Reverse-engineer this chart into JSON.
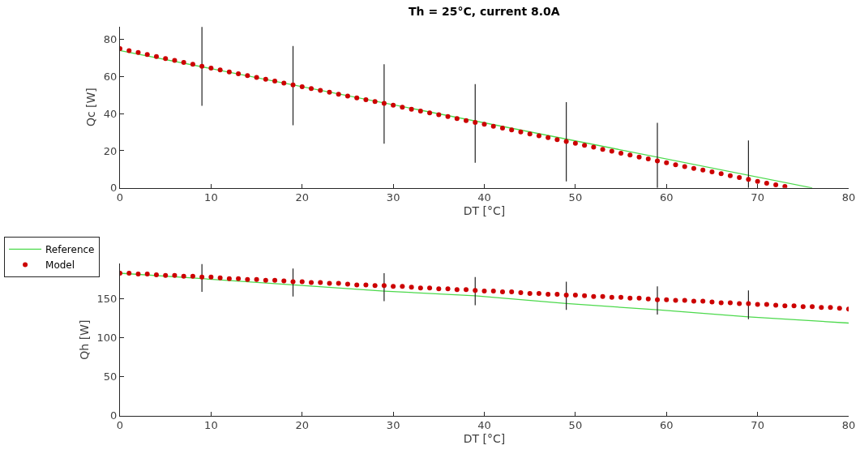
{
  "chart_data": [
    {
      "type": "line",
      "title": "Th = 25°C, current 8.0A",
      "xlabel": "DT [°C]",
      "ylabel": "Qc [W]",
      "xlim": [
        0,
        80
      ],
      "xticks": [
        0,
        10,
        20,
        30,
        40,
        50,
        60,
        70,
        80
      ],
      "ylim": [
        0,
        87
      ],
      "yticks": [
        0,
        20,
        40,
        60,
        80
      ],
      "legend": "bottom left",
      "series": [
        {
          "name": "Reference",
          "color": "#4cd94c",
          "x": [
            0,
            76
          ],
          "values": [
            74,
            0
          ]
        },
        {
          "name": "Model",
          "type": "scatter",
          "color": "#cc0000",
          "marker": "circle",
          "x": [
            0,
            1,
            2,
            3,
            4,
            5,
            6,
            7,
            8,
            9,
            10,
            11,
            12,
            13,
            14,
            15,
            16,
            17,
            18,
            19,
            20,
            21,
            22,
            23,
            24,
            25,
            26,
            27,
            28,
            29,
            30,
            31,
            32,
            33,
            34,
            35,
            36,
            37,
            38,
            39,
            40,
            41,
            42,
            43,
            44,
            45,
            46,
            47,
            48,
            49,
            50,
            51,
            52,
            53,
            54,
            55,
            56,
            57,
            58,
            59,
            60,
            61,
            62,
            63,
            64,
            65,
            66,
            67,
            68,
            69,
            70,
            71,
            72,
            73
          ],
          "values": [
            75.0,
            73.9,
            72.9,
            71.8,
            70.8,
            69.7,
            68.7,
            67.6,
            66.6,
            65.5,
            64.5,
            63.5,
            62.5,
            61.5,
            60.5,
            59.5,
            58.5,
            57.5,
            56.5,
            55.5,
            54.5,
            53.5,
            52.5,
            51.5,
            50.5,
            49.5,
            48.5,
            47.5,
            46.5,
            45.5,
            44.5,
            43.5,
            42.4,
            41.4,
            40.4,
            39.4,
            38.4,
            37.4,
            36.3,
            35.3,
            34.3,
            33.2,
            32.2,
            31.2,
            30.1,
            29.1,
            28.1,
            27.1,
            26.0,
            25.0,
            24.0,
            22.9,
            21.9,
            20.8,
            19.8,
            18.7,
            17.7,
            16.6,
            15.6,
            14.5,
            13.5,
            12.5,
            11.5,
            10.5,
            9.6,
            8.6,
            7.6,
            6.6,
            5.6,
            4.6,
            3.5,
            2.5,
            1.6,
            0.8
          ],
          "errors": [
            null,
            null,
            null,
            null,
            null,
            null,
            null,
            null,
            null,
            [
              44.2,
              86.7
            ],
            null,
            null,
            null,
            null,
            null,
            null,
            null,
            null,
            null,
            [
              33.7,
              76.4
            ],
            null,
            null,
            null,
            null,
            null,
            null,
            null,
            null,
            null,
            [
              23.8,
              66.6
            ],
            null,
            null,
            null,
            null,
            null,
            null,
            null,
            null,
            null,
            [
              13.5,
              55.9
            ],
            null,
            null,
            null,
            null,
            null,
            null,
            null,
            null,
            null,
            [
              3.5,
              46.2
            ],
            null,
            null,
            null,
            null,
            null,
            null,
            null,
            null,
            null,
            [
              0,
              35.1
            ],
            null,
            null,
            null,
            null,
            null,
            null,
            null,
            null,
            null,
            [
              0,
              25.6
            ],
            null,
            null,
            null,
            null
          ]
        }
      ]
    },
    {
      "type": "line",
      "xlabel": "DT [°C]",
      "ylabel": "Qh [W]",
      "xlim": [
        0,
        80
      ],
      "xticks": [
        0,
        10,
        20,
        30,
        40,
        50,
        60,
        70,
        80
      ],
      "ylim": [
        0,
        195
      ],
      "yticks": [
        0,
        50,
        100,
        150
      ],
      "series": [
        {
          "color": "#4cd94c",
          "x": [
            0,
            9,
            19,
            29,
            39,
            49,
            59,
            69,
            80
          ],
          "values": [
            183,
            176,
            168,
            160,
            154,
            144,
            136,
            127,
            119
          ]
        },
        {
          "type": "scatter",
          "color": "#cc0000",
          "marker": "circle",
          "x": [
            0,
            1,
            2,
            3,
            4,
            5,
            6,
            7,
            8,
            9,
            10,
            11,
            12,
            13,
            14,
            15,
            16,
            17,
            18,
            19,
            20,
            21,
            22,
            23,
            24,
            25,
            26,
            27,
            28,
            29,
            30,
            31,
            32,
            33,
            34,
            35,
            36,
            37,
            38,
            39,
            40,
            41,
            42,
            43,
            44,
            45,
            46,
            47,
            48,
            49,
            50,
            51,
            52,
            53,
            54,
            55,
            56,
            57,
            58,
            59,
            60,
            61,
            62,
            63,
            64,
            65,
            66,
            67,
            68,
            69,
            70,
            71,
            72,
            73,
            74,
            75,
            76,
            77,
            78,
            79,
            80
          ],
          "values": [
            183,
            183,
            182,
            182,
            181,
            180,
            180,
            179,
            179,
            178,
            178,
            177,
            176,
            176,
            175,
            175,
            174,
            174,
            173,
            172,
            172,
            171,
            171,
            170,
            170,
            169,
            168,
            168,
            167,
            167,
            166,
            166,
            165,
            164,
            164,
            163,
            163,
            162,
            162,
            161,
            160,
            160,
            159,
            159,
            158,
            157,
            157,
            156,
            156,
            155,
            155,
            154,
            153,
            153,
            152,
            152,
            151,
            151,
            150,
            149,
            149,
            148,
            148,
            147,
            147,
            146,
            145,
            145,
            144,
            144,
            143,
            143,
            142,
            141,
            141,
            140,
            140,
            139,
            139,
            138,
            137
          ],
          "errors": [
            null,
            null,
            null,
            null,
            null,
            null,
            null,
            null,
            null,
            [
              159,
              195
            ],
            null,
            null,
            null,
            null,
            null,
            null,
            null,
            null,
            null,
            [
              153,
              189
            ],
            null,
            null,
            null,
            null,
            null,
            null,
            null,
            null,
            null,
            [
              147,
              183
            ],
            null,
            null,
            null,
            null,
            null,
            null,
            null,
            null,
            null,
            [
              142,
              178
            ],
            null,
            null,
            null,
            null,
            null,
            null,
            null,
            null,
            null,
            [
              136,
              172
            ],
            null,
            null,
            null,
            null,
            null,
            null,
            null,
            null,
            null,
            [
              130,
              166
            ],
            null,
            null,
            null,
            null,
            null,
            null,
            null,
            null,
            null,
            [
              124,
              161
            ],
            null,
            null,
            null,
            null,
            null,
            null,
            null,
            null,
            null,
            null,
            null
          ]
        }
      ]
    }
  ]
}
